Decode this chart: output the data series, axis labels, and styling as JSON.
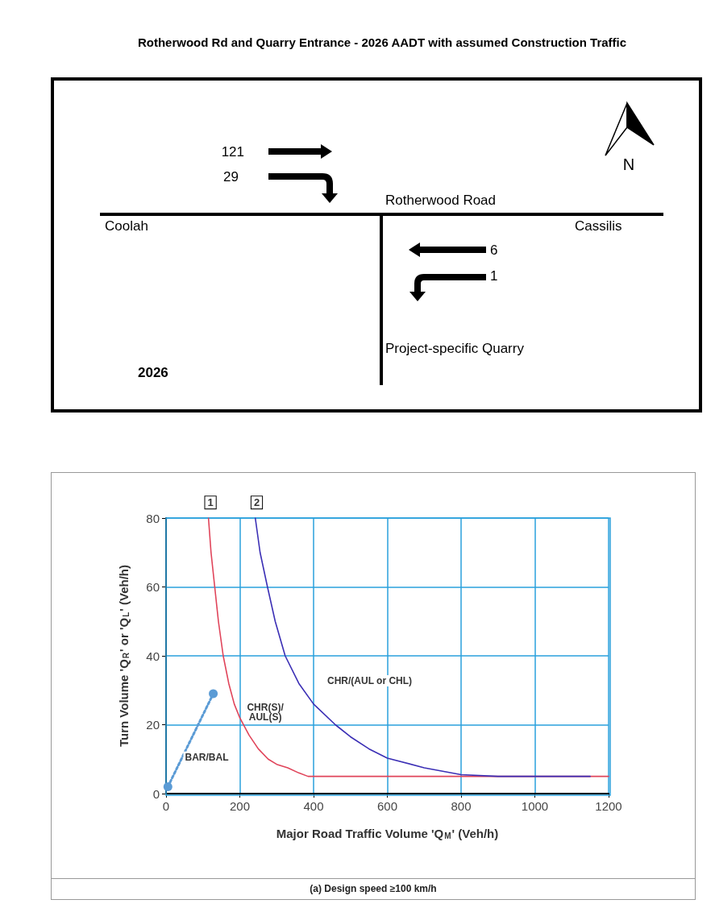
{
  "chart_data": [
    {
      "type": "other",
      "title": "Rotherwood Rd and Quarry Entrance - 2026 AADT with assumed Construction Traffic",
      "annotations": [
        "121",
        "29",
        "6",
        "1",
        "Rotherwood Road",
        "Coolah",
        "Cassilis",
        "Project-specific Quarry",
        "2026",
        "N"
      ]
    },
    {
      "type": "line",
      "xlabel": "Major Road Traffic Volume 'Q$_{M}$' (Veh/h)",
      "ylabel": "Turn Volume 'Q$_{R}$' or 'Q$_{L}$' (Veh/h)",
      "xlim": [
        0,
        1200
      ],
      "xticks": [
        0,
        200,
        400,
        600,
        800,
        1000,
        1200
      ],
      "ylim": [
        0,
        80
      ],
      "yticks": [
        0,
        20,
        40,
        60,
        80
      ],
      "grid": true,
      "series": [
        {
          "color": "#e0445a",
          "marker": "none",
          "line_style": "solid",
          "x": [
            115,
            122,
            132,
            142,
            155,
            170,
            185,
            200,
            225,
            250,
            277,
            300,
            330,
            360,
            385,
            400,
            600,
            800,
            1000,
            1200
          ],
          "values": [
            80,
            70,
            60,
            50,
            40,
            32,
            26,
            22,
            17,
            13,
            10,
            8.5,
            7.5,
            6,
            5,
            5,
            5,
            5,
            5,
            5
          ]
        },
        {
          "color": "#3b2fb5",
          "marker": "none",
          "line_style": "solid",
          "x": [
            242,
            255,
            275,
            296,
            323,
            360,
            400,
            459,
            500,
            550,
            600,
            700,
            800,
            900,
            1000,
            1150
          ],
          "values": [
            80,
            70,
            60,
            50,
            40,
            32,
            26,
            20,
            16.5,
            13,
            10.3,
            7.5,
            5.5,
            5,
            5,
            5
          ]
        },
        {
          "color": "#5b9bd5",
          "marker": "circle",
          "line_style": "dotted",
          "x": [
            5,
            128
          ],
          "values": [
            2,
            29
          ]
        }
      ],
      "annotations": [
        "1",
        "2",
        "BAR/BAL",
        "CHR(S)/\nAUL(S)",
        "CHR/(AUL or CHL)",
        "(a) Design speed ≥100 km/h"
      ]
    }
  ]
}
